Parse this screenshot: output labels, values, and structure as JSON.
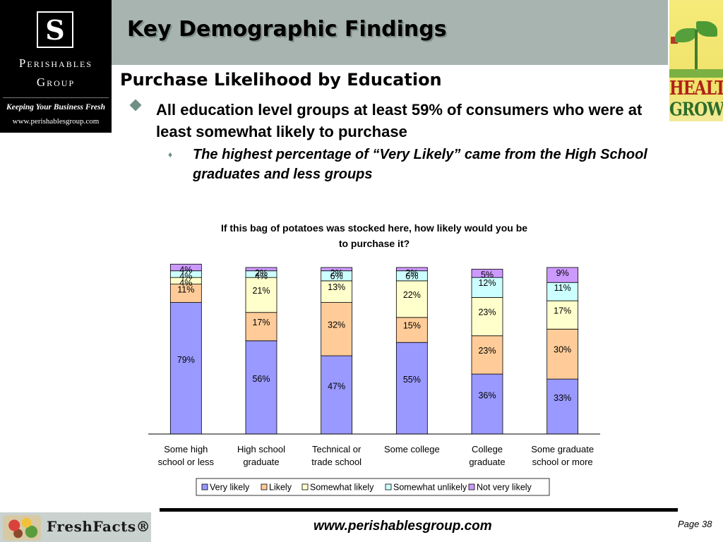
{
  "logo": {
    "mark": "S",
    "name_line1": "Perishables",
    "name_line2": "Group",
    "tagline": "Keeping Your Business Fresh",
    "url": "www.perishablesgroup.com"
  },
  "header": {
    "title": "Key Demographic Findings"
  },
  "badge": {
    "line1": "HEALTHY",
    "line2": "GROWN"
  },
  "content": {
    "subtitle": "Purchase Likelihood by Education",
    "bullet1_marker": "◆",
    "bullet1": "All education level groups at least 59% of consumers who were at least somewhat likely to purchase",
    "bullet2_marker": "♦",
    "bullet2": "The highest percentage of “Very Likely” came from the High School graduates and less groups"
  },
  "chart_data": {
    "type": "bar",
    "stacked": true,
    "title_lines": [
      "If this bag of potatoes was stocked here, how likely would you be",
      "to purchase it?"
    ],
    "categories": [
      [
        "Some high",
        "school or less"
      ],
      [
        "High school",
        "graduate"
      ],
      [
        "Technical or",
        "trade school"
      ],
      [
        "Some college",
        ""
      ],
      [
        "College",
        "graduate"
      ],
      [
        "Some graduate",
        "school or more"
      ]
    ],
    "series": [
      {
        "name": "Very likely",
        "color": "#9999ff",
        "values": [
          79,
          56,
          47,
          55,
          36,
          33
        ]
      },
      {
        "name": "Likely",
        "color": "#ffcc99",
        "values": [
          11,
          17,
          32,
          15,
          23,
          30
        ]
      },
      {
        "name": "Somewhat likely",
        "color": "#ffffcc",
        "values": [
          4,
          21,
          13,
          22,
          23,
          17
        ]
      },
      {
        "name": "Somewhat unlikely",
        "color": "#ccffff",
        "values": [
          4,
          4,
          6,
          6,
          12,
          11
        ]
      },
      {
        "name": "Not very likely",
        "color": "#cc99ff",
        "values": [
          4,
          2,
          2,
          2,
          5,
          9
        ]
      }
    ],
    "value_suffix": "%",
    "ylim": [
      0,
      100
    ],
    "legend_position": "bottom",
    "grid": false
  },
  "footer": {
    "brand": "FreshFacts®",
    "url": "www.perishablesgroup.com",
    "page": "Page 38"
  }
}
